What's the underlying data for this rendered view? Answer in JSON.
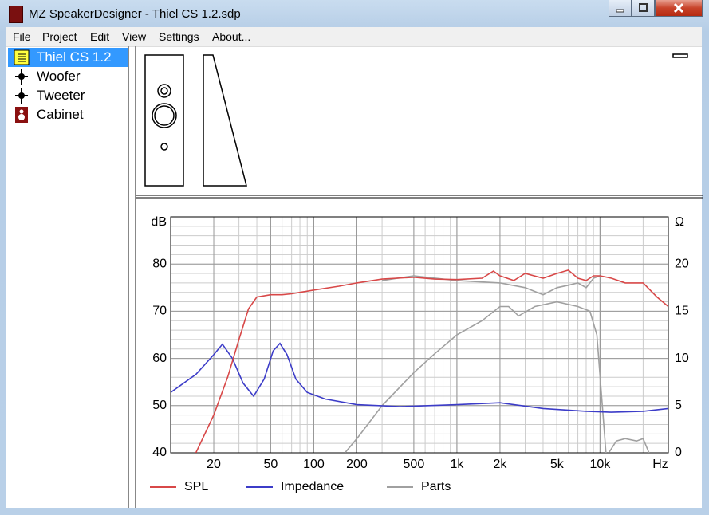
{
  "window": {
    "title": "MZ SpeakerDesigner - Thiel CS 1.2.sdp"
  },
  "menu": [
    "File",
    "Project",
    "Edit",
    "View",
    "Settings",
    "About..."
  ],
  "tree": [
    "Thiel CS 1.2",
    "Woofer",
    "Tweeter",
    "Cabinet"
  ],
  "chart_data": {
    "type": "line",
    "xlabel": "Hz",
    "ylabel": "dB",
    "y2label": "Ω",
    "xscale": "log",
    "grid": true,
    "minor_grid": true,
    "xlim": [
      10,
      30000
    ],
    "ylim": [
      40,
      90
    ],
    "y2lim": [
      0,
      25
    ],
    "xticks": [
      20,
      50,
      100,
      200,
      500,
      {
        "value": 1000,
        "label": "1k"
      },
      {
        "value": 2000,
        "label": "2k"
      },
      {
        "value": 5000,
        "label": "5k"
      },
      {
        "value": 10000,
        "label": "10k"
      }
    ],
    "yticks": [
      40,
      50,
      60,
      70,
      80
    ],
    "y2ticks": [
      0,
      5,
      10,
      15,
      20
    ],
    "series": [
      {
        "name": "SPL",
        "color": "#d84848",
        "x": [
          15,
          20,
          25,
          30,
          35,
          40,
          50,
          60,
          70,
          80,
          100,
          150,
          200,
          300,
          500,
          700,
          1000,
          1500,
          1800,
          2000,
          2500,
          3000,
          4000,
          5000,
          6000,
          7000,
          8000,
          9000,
          10000,
          12000,
          15000,
          20000,
          25000,
          30000
        ],
        "values": [
          40,
          48,
          56,
          64,
          70.5,
          73,
          73.5,
          73.5,
          73.7,
          74,
          74.5,
          75.3,
          76,
          76.8,
          77.2,
          76.8,
          76.7,
          77,
          78.5,
          77.5,
          76.5,
          78,
          77,
          78,
          78.7,
          77,
          76.5,
          77.5,
          77.5,
          77,
          76,
          76,
          73,
          71
        ]
      },
      {
        "name": "Impedance",
        "color": "#3c3cc8",
        "axis": "y2",
        "x": [
          10,
          15,
          20,
          23,
          27,
          32,
          38,
          45,
          52,
          58,
          65,
          75,
          90,
          120,
          200,
          400,
          1000,
          2000,
          4000,
          8000,
          12000,
          20000,
          30000
        ],
        "values": [
          6.4,
          8.3,
          10.4,
          11.5,
          10,
          7.4,
          6,
          7.8,
          10.8,
          11.6,
          10.4,
          7.8,
          6.4,
          5.7,
          5.1,
          4.9,
          5.1,
          5.3,
          4.7,
          4.4,
          4.3,
          4.4,
          4.7
        ]
      },
      {
        "name": "Parts",
        "color": "#a0a0a0",
        "curves": [
          {
            "x": [
              165,
              200,
              300,
              500,
              700,
              1000,
              1500,
              2000,
              2300,
              2700,
              3500,
              5000,
              7000,
              8500,
              9500,
              11000
            ],
            "values": [
              40,
              43,
              50,
              57,
              61,
              65,
              68,
              71,
              71,
              69,
              71,
              72,
              71,
              70,
              65,
              40
            ]
          },
          {
            "x": [
              300,
              500,
              1000,
              1500,
              2000,
              3000,
              4000,
              5000,
              6000,
              7000,
              8000,
              9000,
              10000
            ],
            "values": [
              76.5,
              77.5,
              76.5,
              76.2,
              76,
              75,
              73.5,
              75,
              75.5,
              76,
              75,
              77,
              77.5
            ]
          },
          {
            "x": [
              11500,
              13000,
              15000,
              18000,
              20000,
              22000
            ],
            "values": [
              40,
              42.5,
              43,
              42.5,
              43,
              40
            ]
          }
        ]
      }
    ],
    "legend": "bottom"
  }
}
